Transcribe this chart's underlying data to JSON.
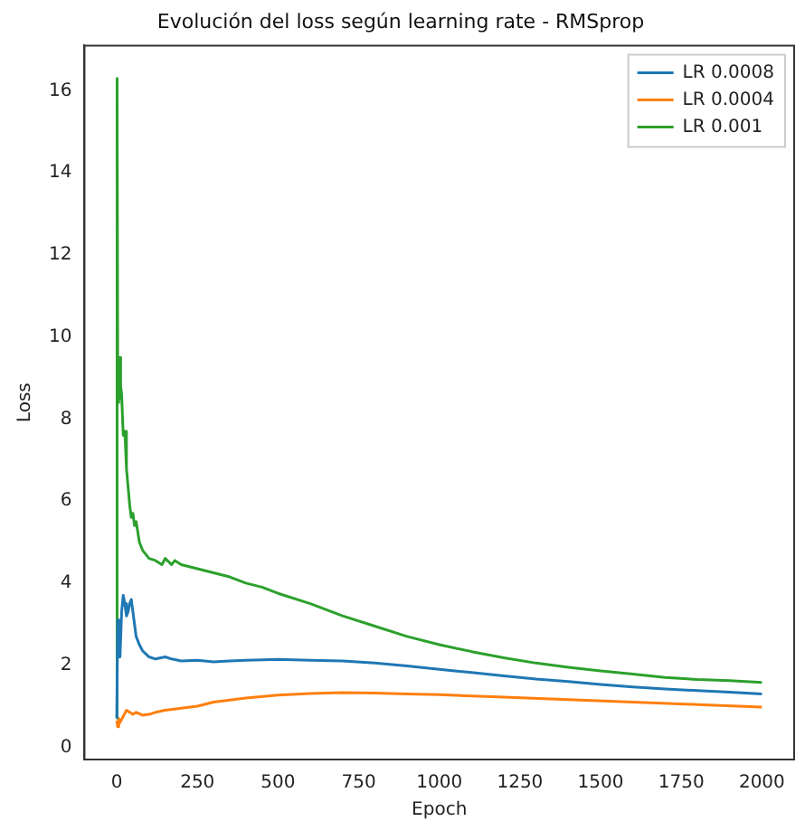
{
  "chart_data": {
    "type": "line",
    "title": "Evolución del loss según learning rate - RMSprop",
    "xlabel": "Epoch",
    "ylabel": "Loss",
    "xlim": [
      -100,
      2100
    ],
    "xticks": [
      0,
      250,
      500,
      750,
      1000,
      1250,
      1500,
      1750,
      2000
    ],
    "ylim": [
      -0.3,
      17.1
    ],
    "yticks": [
      0,
      2,
      4,
      6,
      8,
      10,
      12,
      14,
      16
    ],
    "grid": false,
    "legend": "top right",
    "marker": "none",
    "line_style": "solid",
    "series": [
      {
        "name": "LR 0.0008",
        "color": "#1f77b4",
        "x": [
          0,
          3,
          5,
          8,
          10,
          15,
          20,
          25,
          30,
          35,
          40,
          45,
          50,
          55,
          60,
          70,
          80,
          100,
          120,
          150,
          170,
          200,
          250,
          300,
          350,
          400,
          500,
          600,
          700,
          800,
          900,
          1000,
          1100,
          1200,
          1300,
          1400,
          1500,
          1600,
          1700,
          1800,
          1900,
          2000
        ],
        "values": [
          0.7,
          3.1,
          2.2,
          2.6,
          2.2,
          3.3,
          3.7,
          3.5,
          3.2,
          3.3,
          3.5,
          3.6,
          3.3,
          3.0,
          2.7,
          2.5,
          2.35,
          2.2,
          2.15,
          2.2,
          2.15,
          2.1,
          2.12,
          2.08,
          2.1,
          2.12,
          2.14,
          2.12,
          2.1,
          2.05,
          1.98,
          1.9,
          1.82,
          1.74,
          1.66,
          1.6,
          1.53,
          1.47,
          1.42,
          1.38,
          1.34,
          1.3
        ]
      },
      {
        "name": "LR 0.0004",
        "color": "#ff7f0e",
        "x": [
          0,
          3,
          6,
          10,
          20,
          30,
          40,
          50,
          60,
          80,
          100,
          120,
          150,
          200,
          250,
          300,
          400,
          500,
          600,
          700,
          800,
          900,
          1000,
          1200,
          1400,
          1600,
          1800,
          2000
        ],
        "values": [
          0.65,
          0.5,
          0.7,
          0.6,
          0.75,
          0.9,
          0.85,
          0.8,
          0.85,
          0.78,
          0.8,
          0.85,
          0.9,
          0.95,
          1.0,
          1.1,
          1.2,
          1.27,
          1.31,
          1.33,
          1.32,
          1.3,
          1.28,
          1.22,
          1.16,
          1.1,
          1.04,
          0.98
        ]
      },
      {
        "name": "LR 0.001",
        "color": "#2ca02c",
        "x": [
          0,
          1,
          3,
          5,
          7,
          9,
          11,
          13,
          15,
          20,
          25,
          30,
          40,
          45,
          50,
          55,
          60,
          70,
          80,
          90,
          100,
          120,
          140,
          150,
          170,
          180,
          200,
          250,
          300,
          350,
          400,
          450,
          500,
          600,
          700,
          800,
          900,
          1000,
          1100,
          1200,
          1300,
          1400,
          1500,
          1600,
          1700,
          1800,
          1900,
          2000
        ],
        "values": [
          0.7,
          16.3,
          9.0,
          8.4,
          9.5,
          8.5,
          9.5,
          8.8,
          8.6,
          7.6,
          7.7,
          6.8,
          5.9,
          5.6,
          5.7,
          5.4,
          5.5,
          5.0,
          4.8,
          4.7,
          4.6,
          4.55,
          4.45,
          4.6,
          4.45,
          4.55,
          4.45,
          4.35,
          4.25,
          4.15,
          4.0,
          3.9,
          3.75,
          3.5,
          3.2,
          2.95,
          2.7,
          2.5,
          2.33,
          2.18,
          2.05,
          1.95,
          1.86,
          1.78,
          1.7,
          1.65,
          1.62,
          1.58
        ]
      }
    ]
  }
}
